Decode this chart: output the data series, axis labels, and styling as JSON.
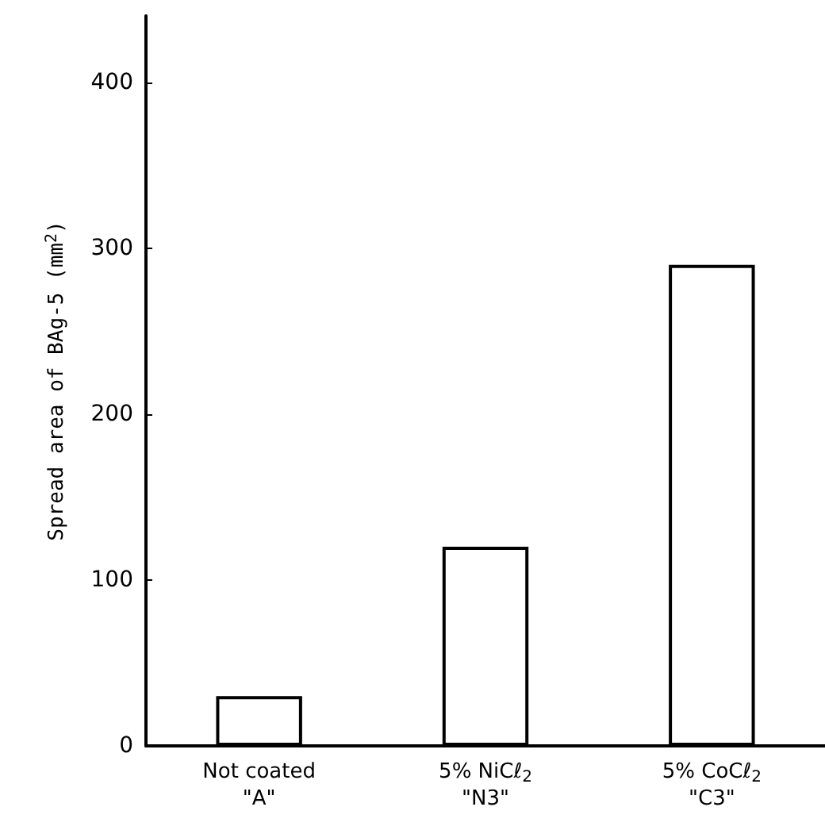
{
  "chart_data": {
    "type": "bar",
    "ylabel": "Spread area of BAg-5 (mm$^{2}$)",
    "categories": [
      "Not coated\n\"A\"",
      "5% NiCℓ$_{2}$\n\"N3\"",
      "5% CoCℓ$_{2}$\n\"C3\""
    ],
    "values": [
      30,
      120,
      290
    ],
    "color": "#ffffff",
    "ylim": [
      0,
      440
    ],
    "yticks": [
      0,
      100,
      200,
      300,
      400
    ],
    "grid": false
  }
}
